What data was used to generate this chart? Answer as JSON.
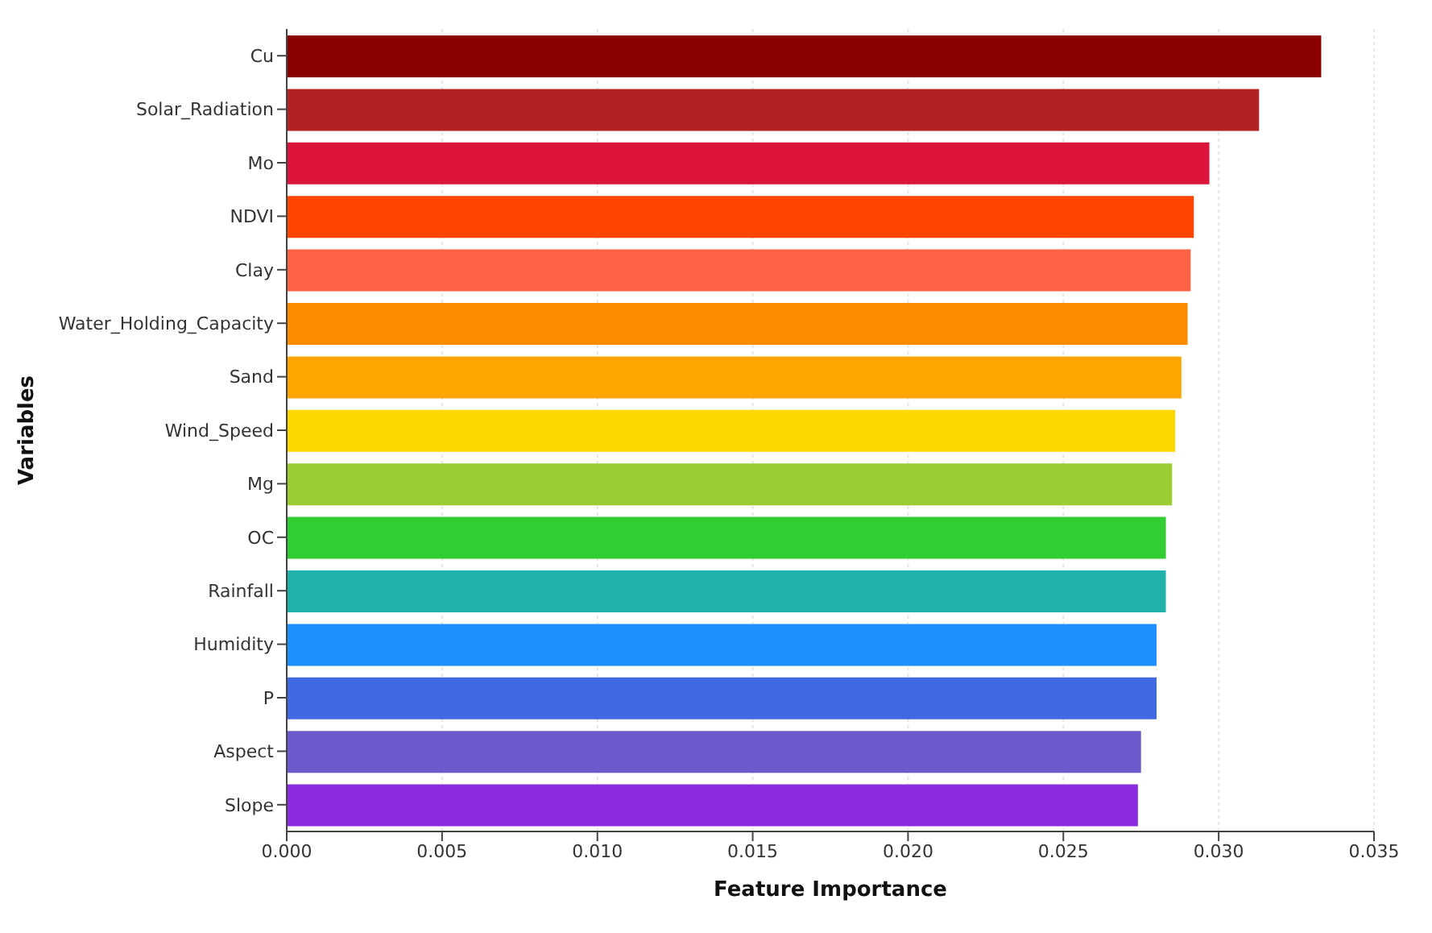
{
  "chart_data": {
    "type": "bar",
    "orientation": "horizontal",
    "xlabel": "Feature Importance",
    "ylabel": "Variables",
    "categories": [
      "Cu",
      "Solar_Radiation",
      "Mo",
      "NDVI",
      "Clay",
      "Water_Holding_Capacity",
      "Sand",
      "Wind_Speed",
      "Mg",
      "OC",
      "Rainfall",
      "Humidity",
      "P",
      "Aspect",
      "Slope"
    ],
    "values": [
      0.0333,
      0.0313,
      0.0297,
      0.0292,
      0.0291,
      0.029,
      0.0288,
      0.0286,
      0.0285,
      0.0283,
      0.0283,
      0.028,
      0.028,
      0.0275,
      0.0274
    ],
    "colors": [
      "#8b0000",
      "#b22222",
      "#dc143c",
      "#ff4500",
      "#ff6347",
      "#ff8c00",
      "#ffa500",
      "#ffd700",
      "#9acd32",
      "#32cd32",
      "#20b2aa",
      "#1e90ff",
      "#4169e1",
      "#6a5acd",
      "#8a2be2"
    ],
    "xlim": [
      0,
      0.035
    ],
    "xticks": [
      {
        "value": 0,
        "label": "0.000"
      },
      0.005,
      {
        "value": 0.01,
        "label": "0.010"
      },
      0.015,
      {
        "value": 0.02,
        "label": "0.020"
      },
      0.025,
      {
        "value": 0.03,
        "label": "0.030"
      },
      0.035
    ],
    "grid": "x"
  }
}
